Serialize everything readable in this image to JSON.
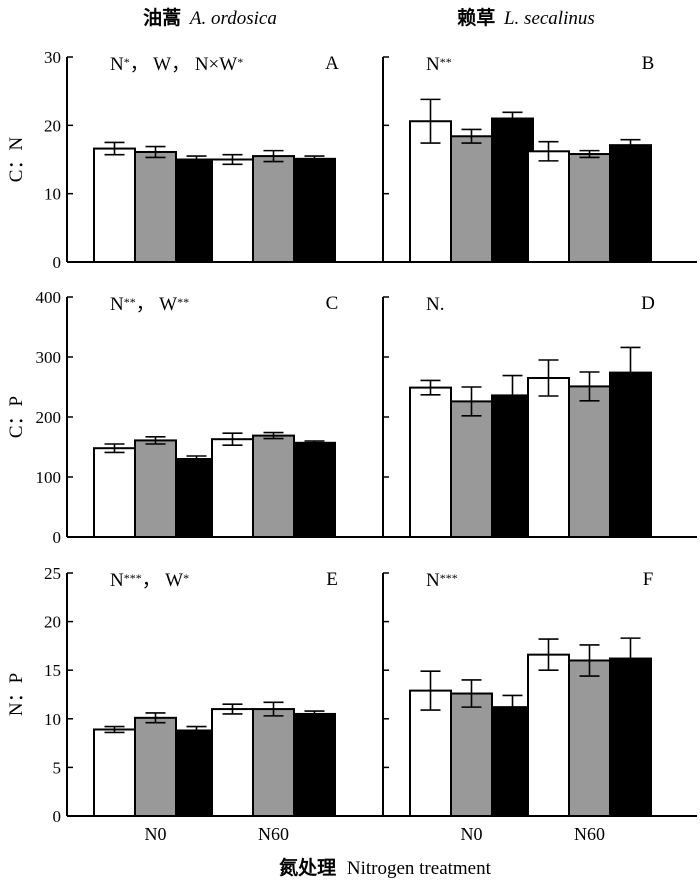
{
  "colors": {
    "white_bar": "#ffffff",
    "gray_bar": "#999999",
    "black_bar": "#000000",
    "axis": "#000000"
  },
  "headers": {
    "left": {
      "cn": "油蒿",
      "latin": "A. ordosica"
    },
    "right": {
      "cn": "赖草",
      "latin": "L. secalinus"
    }
  },
  "xlabel": {
    "cn": "氮处理",
    "en": "Nitrogen treatment"
  },
  "chart_data": [
    {
      "type": "bar",
      "panel": "A",
      "row": 0,
      "col": 0,
      "ylabel": "C：N",
      "ylim": [
        0,
        30
      ],
      "yticks": [
        0,
        10,
        20,
        30
      ],
      "categories": [
        "N0",
        "N60"
      ],
      "annotation": "N*，  W，  N×W*",
      "series": [
        {
          "name": "white",
          "values": [
            16.6,
            15.0
          ],
          "errors": [
            0.9,
            0.7
          ]
        },
        {
          "name": "gray",
          "values": [
            16.1,
            15.5
          ],
          "errors": [
            0.8,
            0.8
          ]
        },
        {
          "name": "black",
          "values": [
            15.0,
            15.1
          ],
          "errors": [
            0.5,
            0.4
          ]
        }
      ]
    },
    {
      "type": "bar",
      "panel": "B",
      "row": 0,
      "col": 1,
      "ylabel": "",
      "ylim": [
        0,
        30
      ],
      "yticks": [
        0,
        10,
        20,
        30
      ],
      "categories": [
        "N0",
        "N60"
      ],
      "annotation": "N**",
      "series": [
        {
          "name": "white",
          "values": [
            20.6,
            16.2
          ],
          "errors": [
            3.2,
            1.4
          ]
        },
        {
          "name": "gray",
          "values": [
            18.4,
            15.8
          ],
          "errors": [
            1.0,
            0.5
          ]
        },
        {
          "name": "black",
          "values": [
            21.0,
            17.1
          ],
          "errors": [
            0.9,
            0.8
          ]
        }
      ]
    },
    {
      "type": "bar",
      "panel": "C",
      "row": 1,
      "col": 0,
      "ylabel": "C：P",
      "ylim": [
        0,
        400
      ],
      "yticks": [
        0,
        100,
        200,
        300,
        400
      ],
      "categories": [
        "N0",
        "N60"
      ],
      "annotation": "N**，  W**",
      "series": [
        {
          "name": "white",
          "values": [
            148,
            163
          ],
          "errors": [
            7,
            10
          ]
        },
        {
          "name": "gray",
          "values": [
            161,
            169
          ],
          "errors": [
            6,
            5
          ]
        },
        {
          "name": "black",
          "values": [
            130,
            157
          ],
          "errors": [
            5,
            3
          ]
        }
      ]
    },
    {
      "type": "bar",
      "panel": "D",
      "row": 1,
      "col": 1,
      "ylabel": "",
      "ylim": [
        0,
        400
      ],
      "yticks": [
        0,
        100,
        200,
        300,
        400
      ],
      "categories": [
        "N0",
        "N60"
      ],
      "annotation": "N.",
      "series": [
        {
          "name": "white",
          "values": [
            249,
            265
          ],
          "errors": [
            12,
            30
          ]
        },
        {
          "name": "gray",
          "values": [
            226,
            251
          ],
          "errors": [
            24,
            24
          ]
        },
        {
          "name": "black",
          "values": [
            236,
            274
          ],
          "errors": [
            33,
            42
          ]
        }
      ]
    },
    {
      "type": "bar",
      "panel": "E",
      "row": 2,
      "col": 0,
      "ylabel": "N：P",
      "ylim": [
        0,
        25
      ],
      "yticks": [
        0,
        5,
        10,
        15,
        20,
        25
      ],
      "categories": [
        "N0",
        "N60"
      ],
      "annotation": "N***，  W*",
      "series": [
        {
          "name": "white",
          "values": [
            8.9,
            11.0
          ],
          "errors": [
            0.3,
            0.5
          ]
        },
        {
          "name": "gray",
          "values": [
            10.1,
            11.0
          ],
          "errors": [
            0.5,
            0.7
          ]
        },
        {
          "name": "black",
          "values": [
            8.8,
            10.5
          ],
          "errors": [
            0.4,
            0.3
          ]
        }
      ]
    },
    {
      "type": "bar",
      "panel": "F",
      "row": 2,
      "col": 1,
      "ylabel": "",
      "ylim": [
        0,
        25
      ],
      "yticks": [
        0,
        5,
        10,
        15,
        20,
        25
      ],
      "categories": [
        "N0",
        "N60"
      ],
      "annotation": "N***",
      "series": [
        {
          "name": "white",
          "values": [
            12.9,
            16.6
          ],
          "errors": [
            2.0,
            1.6
          ]
        },
        {
          "name": "gray",
          "values": [
            12.6,
            16.0
          ],
          "errors": [
            1.4,
            1.6
          ]
        },
        {
          "name": "black",
          "values": [
            11.2,
            16.2
          ],
          "errors": [
            1.2,
            2.1
          ]
        }
      ]
    }
  ]
}
